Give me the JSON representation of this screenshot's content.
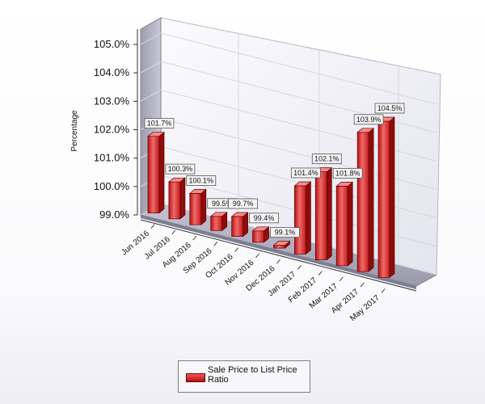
{
  "chart_data": {
    "type": "bar",
    "ylabel": "Percentage",
    "ylim": [
      99.0,
      105.0
    ],
    "y_ticks": [
      "105.0%",
      "104.0%",
      "103.0%",
      "102.0%",
      "101.0%",
      "100.0%",
      "99.0%"
    ],
    "y_tick_values": [
      105.0,
      104.0,
      103.0,
      102.0,
      101.0,
      100.0,
      99.0
    ],
    "categories": [
      "Jun 2016",
      "Jul 2016",
      "Aug 2016",
      "Sep 2016",
      "Oct 2016",
      "Nov 2016",
      "Dec 2016",
      "Jan 2017",
      "Feb 2017",
      "Mar 2017",
      "Apr 2017",
      "May 2017"
    ],
    "series": [
      {
        "name": "Sale Price to List Price Ratio",
        "values": [
          101.7,
          100.3,
          100.1,
          99.5,
          99.7,
          99.4,
          99.1,
          101.4,
          102.1,
          101.8,
          103.9,
          104.5
        ],
        "data_labels": [
          "101.7%",
          "100.3%",
          "100.1%",
          "99.5%",
          "99.7%",
          "99.4%",
          "99.1%",
          "101.4%",
          "102.1%",
          "101.8%",
          "103.9%",
          "104.5%"
        ]
      }
    ],
    "grid": true,
    "legend_position": "bottom-center",
    "style": "3d",
    "bar_color": "#d21e1e"
  },
  "legend": {
    "label": "Sale Price to List Price Ratio"
  }
}
